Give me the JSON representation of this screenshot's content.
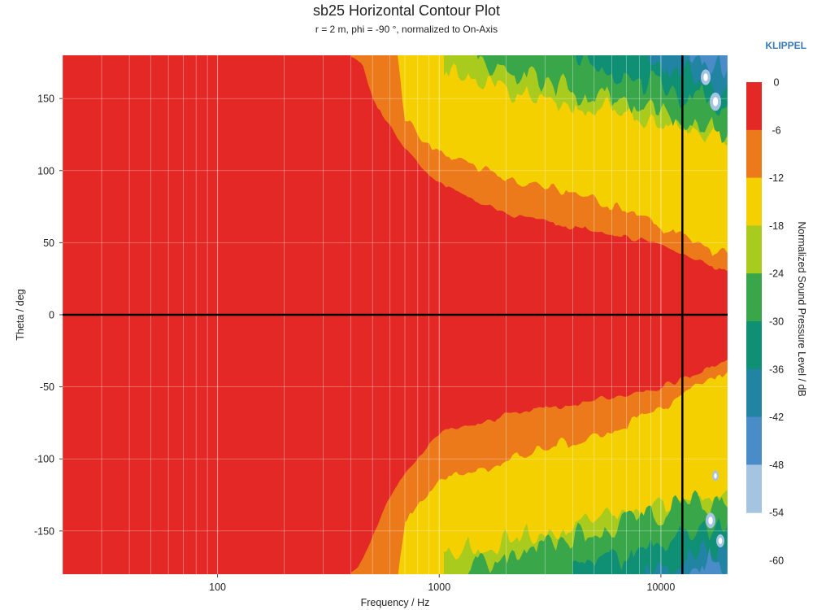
{
  "chart_data": {
    "type": "heatmap",
    "title": "sb25 Horizontal Contour Plot",
    "subtitle": "r = 2 m, phi = -90 °, normalized to On-Axis",
    "brand": "KLIPPEL",
    "xlabel": "Frequency / Hz",
    "ylabel": "Theta / deg",
    "xscale": "log",
    "xlim": [
      20,
      20000
    ],
    "ylim": [
      -180,
      180
    ],
    "x_ticks": [
      100,
      1000,
      10000
    ],
    "x_tick_labels": [
      "100",
      "1000",
      "10000"
    ],
    "y_ticks": [
      150,
      100,
      50,
      0,
      -50,
      -100,
      -150
    ],
    "y_tick_labels": [
      "150",
      "100",
      "50",
      "0",
      "-50",
      "-100",
      "-150"
    ],
    "grid": true,
    "colorbar": {
      "label": "Normalized Sound Pressure Level / dB",
      "ticks": [
        "0",
        "-6",
        "-12",
        "-18",
        "-24",
        "-30",
        "-36",
        "-42",
        "-48",
        "-54",
        "-60"
      ],
      "bands": [
        {
          "range": [
            -6,
            0
          ],
          "color": "#e32826"
        },
        {
          "range": [
            -12,
            -6
          ],
          "color": "#ec7a1b"
        },
        {
          "range": [
            -18,
            -12
          ],
          "color": "#f5d000"
        },
        {
          "range": [
            -24,
            -18
          ],
          "color": "#a8cb1d"
        },
        {
          "range": [
            -30,
            -24
          ],
          "color": "#3aa64a"
        },
        {
          "range": [
            -36,
            -30
          ],
          "color": "#0f8f74"
        },
        {
          "range": [
            -42,
            -36
          ],
          "color": "#2184a3"
        },
        {
          "range": [
            -48,
            -42
          ],
          "color": "#4a8cc7"
        },
        {
          "range": [
            -54,
            -48
          ],
          "color": "#a4c4e2"
        }
      ]
    },
    "reference_lines": [
      {
        "axis": "y",
        "value": 0
      },
      {
        "axis": "x",
        "value": 12500
      }
    ],
    "contour_boundaries_deg": [
      {
        "level": -6,
        "points": [
          [
            400,
            180
          ],
          [
            450,
            175
          ],
          [
            500,
            150
          ],
          [
            700,
            115
          ],
          [
            1000,
            92
          ],
          [
            2000,
            70
          ],
          [
            5000,
            58
          ],
          [
            10000,
            50
          ],
          [
            20000,
            30
          ]
        ]
      },
      {
        "level": -6,
        "points": [
          [
            400,
            -180
          ],
          [
            450,
            -170
          ],
          [
            600,
            -125
          ],
          [
            1000,
            -82
          ],
          [
            2000,
            -70
          ],
          [
            5000,
            -60
          ],
          [
            10000,
            -50
          ],
          [
            20000,
            -32
          ]
        ]
      },
      {
        "level": -12,
        "points": [
          [
            650,
            180
          ],
          [
            700,
            135
          ],
          [
            1000,
            112
          ],
          [
            2000,
            96
          ],
          [
            5000,
            80
          ],
          [
            10000,
            62
          ],
          [
            20000,
            40
          ]
        ]
      },
      {
        "level": -12,
        "points": [
          [
            650,
            -180
          ],
          [
            700,
            -140
          ],
          [
            1000,
            -118
          ],
          [
            2000,
            -100
          ],
          [
            5000,
            -85
          ],
          [
            10000,
            -65
          ],
          [
            20000,
            -40
          ]
        ]
      }
    ]
  }
}
